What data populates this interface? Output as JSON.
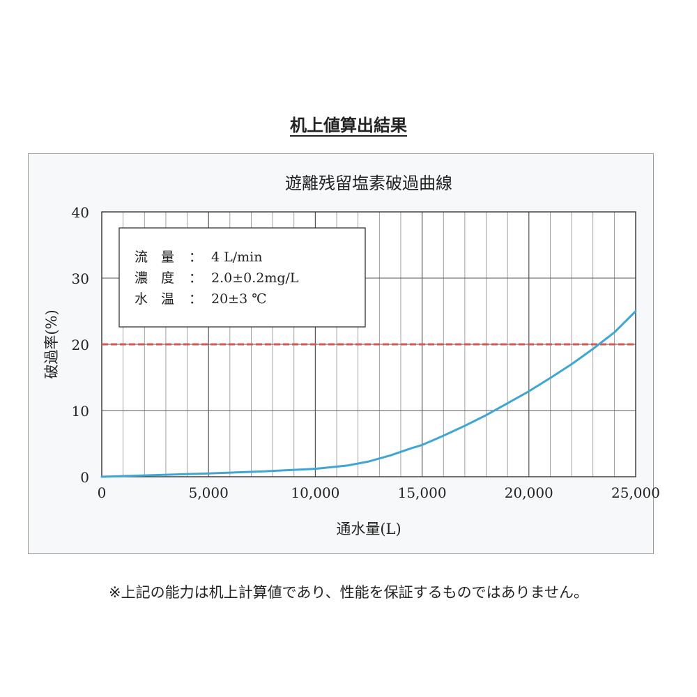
{
  "heading": "机上値算出結果",
  "footnote": "※上記の能力は机上計算値であり、性能を保証するものではありません。",
  "chart_data": {
    "type": "line",
    "title": "遊離残留塩素破過曲線",
    "xlabel": "通水量(L)",
    "ylabel": "破過率(%)",
    "xlim": [
      0,
      25000
    ],
    "ylim": [
      0,
      40
    ],
    "x_ticks": [
      0,
      5000,
      10000,
      15000,
      20000,
      25000
    ],
    "x_tick_labels": [
      "0",
      "5,000",
      "10,000",
      "15,000",
      "20,000",
      "25,000"
    ],
    "y_ticks": [
      0,
      10,
      20,
      30,
      40
    ],
    "y_tick_labels": [
      "0",
      "10",
      "20",
      "30",
      "40"
    ],
    "grid": true,
    "conditions": [
      {
        "label": "流　量",
        "sep": "：",
        "value": "4 L/min"
      },
      {
        "label": "濃　度",
        "sep": "：",
        "value": "2.0±0.2mg/L"
      },
      {
        "label": "水　温",
        "sep": "：",
        "value": "20±3 ℃"
      }
    ],
    "threshold": {
      "y": 20,
      "color": "#d9574f"
    },
    "series": [
      {
        "color": "#3ea6d4",
        "x": [
          0,
          2500,
          5000,
          7500,
          10000,
          11500,
          12500,
          13500,
          14500,
          15000,
          16000,
          17000,
          18000,
          19000,
          20000,
          21000,
          22000,
          23000,
          24000,
          25000
        ],
        "y": [
          0,
          0.25,
          0.5,
          0.8,
          1.2,
          1.7,
          2.3,
          3.2,
          4.3,
          4.8,
          6.2,
          7.7,
          9.3,
          11.1,
          12.9,
          14.9,
          17.0,
          19.3,
          21.8,
          25.0
        ]
      }
    ]
  }
}
